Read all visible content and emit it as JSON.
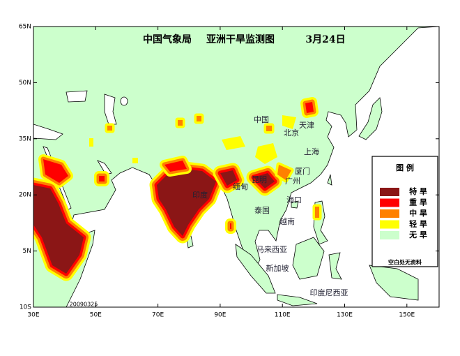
{
  "header": {
    "agency": "中国气象局",
    "title": "亚洲干旱监测图",
    "date": "3月24日"
  },
  "axes": {
    "lat_labels": [
      "65N",
      "50N",
      "35N",
      "20N",
      "5N",
      "10S"
    ],
    "lon_labels": [
      "30E",
      "50E",
      "70E",
      "90E",
      "110E",
      "130E",
      "150E"
    ]
  },
  "places": [
    "中国",
    "天津",
    "北京",
    "上海",
    "厦门",
    "广州",
    "昆明",
    "缅甸",
    "印度",
    "泰国",
    "海口",
    "越南",
    "马来西亚",
    "新加坡",
    "印度尼西亚"
  ],
  "legend": {
    "title": "图 例",
    "items": [
      {
        "label": "特 旱",
        "color": "#8b1616"
      },
      {
        "label": "重 旱",
        "color": "#ff0000"
      },
      {
        "label": "中 旱",
        "color": "#ff8000"
      },
      {
        "label": "轻 旱",
        "color": "#ffff00"
      },
      {
        "label": "无 旱",
        "color": "#ccffcc"
      }
    ],
    "note": "空白处无资料"
  },
  "stamp": "20090325"
}
